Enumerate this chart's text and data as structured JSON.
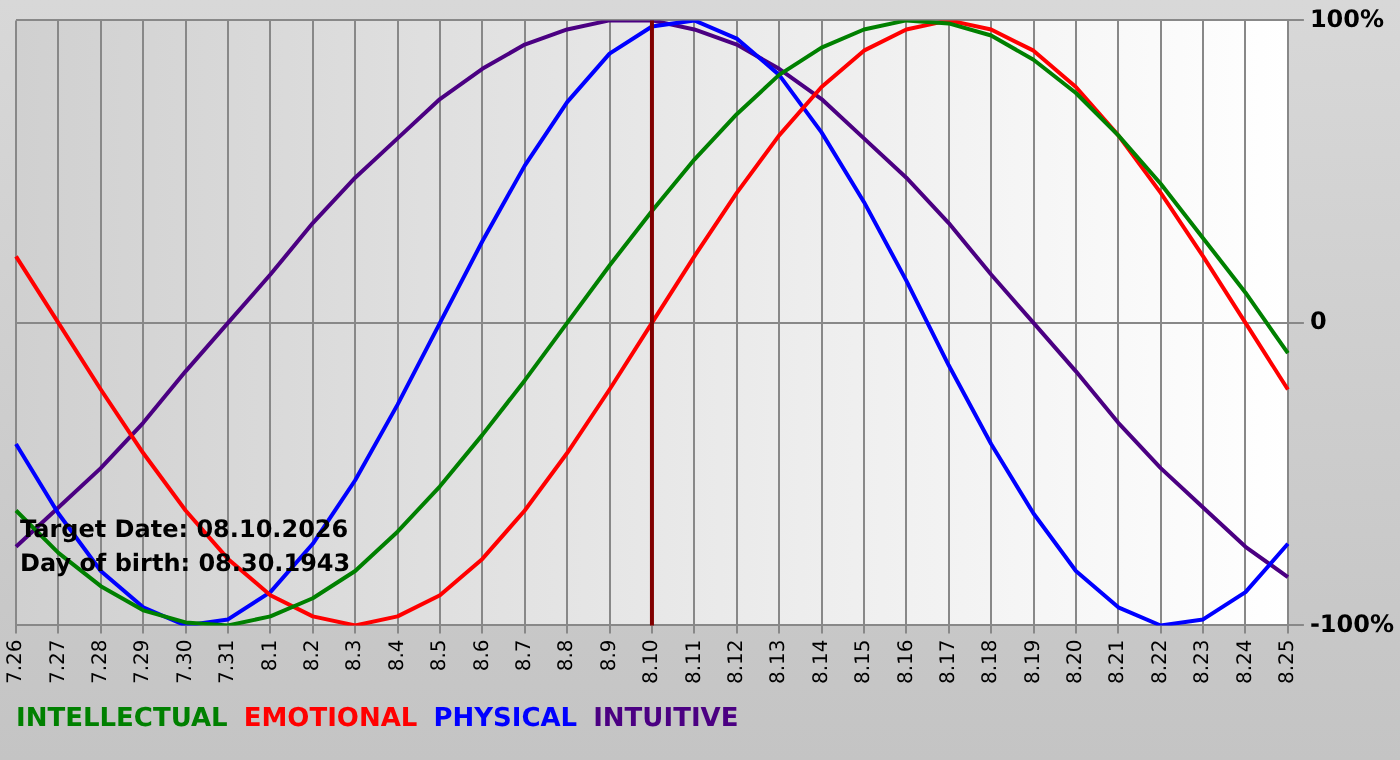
{
  "chart_data": {
    "type": "line",
    "categories": [
      "7.26",
      "7.27",
      "7.28",
      "7.29",
      "7.30",
      "7.31",
      "8.1",
      "8.2",
      "8.3",
      "8.4",
      "8.5",
      "8.6",
      "8.7",
      "8.8",
      "8.9",
      "8.10",
      "8.11",
      "8.12",
      "8.13",
      "8.14",
      "8.15",
      "8.16",
      "8.17",
      "8.18",
      "8.19",
      "8.20",
      "8.21",
      "8.22",
      "8.23",
      "8.24",
      "8.25"
    ],
    "series": [
      {
        "name": "INTELLECTUAL",
        "color": "#008000",
        "values": [
          -62,
          -76,
          -87,
          -95,
          -99,
          -100,
          -97,
          -91,
          -82,
          -69,
          -54,
          -37,
          -19,
          0,
          19,
          37,
          54,
          69,
          82,
          91,
          97,
          100,
          99,
          95,
          87,
          76,
          62,
          46,
          28,
          10,
          -10
        ]
      },
      {
        "name": "EMOTIONAL",
        "color": "#ff0000",
        "values": [
          22,
          0,
          -22,
          -43,
          -62,
          -78,
          -90,
          -97,
          -100,
          -97,
          -90,
          -78,
          -62,
          -43,
          -22,
          0,
          22,
          43,
          62,
          78,
          90,
          97,
          100,
          97,
          90,
          78,
          62,
          43,
          22,
          0,
          -22
        ]
      },
      {
        "name": "PHYSICAL",
        "color": "#0000ff",
        "values": [
          -40,
          -63,
          -82,
          -94,
          -100,
          -98,
          -89,
          -73,
          -52,
          -27,
          0,
          27,
          52,
          73,
          89,
          98,
          100,
          94,
          82,
          63,
          40,
          14,
          -14,
          -40,
          -63,
          -82,
          -94,
          -100,
          -98,
          -89,
          -73
        ]
      },
      {
        "name": "INTUITIVE",
        "color": "#4b0082",
        "values": [
          -74,
          -61,
          -48,
          -33,
          -16,
          0,
          16,
          33,
          48,
          61,
          74,
          84,
          92,
          97,
          100,
          100,
          97,
          92,
          84,
          74,
          61,
          48,
          33,
          16,
          0,
          -16,
          -33,
          -48,
          -61,
          -74,
          -84
        ]
      }
    ],
    "ylim": [
      -100,
      100
    ],
    "yticks": [
      {
        "value": -100,
        "label": "-100%"
      },
      {
        "value": 0,
        "label": "0"
      },
      {
        "value": 100,
        "label": "100%"
      }
    ],
    "grid": true,
    "legend": "bottom left",
    "marker": "none",
    "line_style": "solid",
    "ref_lines": [
      {
        "axis": "x",
        "value": "8.10",
        "color": "#800000"
      }
    ],
    "annotations": [
      "Target Date: 08.10.2026",
      "Day of birth: 08.30.1943"
    ]
  }
}
